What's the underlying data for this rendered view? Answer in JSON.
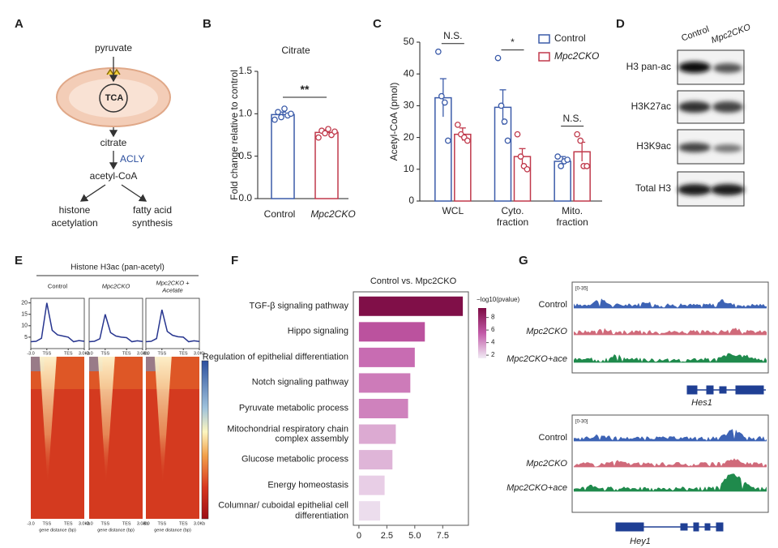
{
  "panel_letters": [
    "A",
    "B",
    "C",
    "D",
    "E",
    "F",
    "G"
  ],
  "pathway": {
    "pyruvate": "pyruvate",
    "tca": "TCA",
    "citrate": "citrate",
    "enzyme": "ACLY",
    "acetyl_coa": "acetyl-CoA",
    "histone": [
      "histone",
      "acetylation"
    ],
    "fatty_acid": [
      "fatty acid",
      "synthesis"
    ]
  },
  "chart_data": [
    {
      "type": "bar",
      "title": "Citrate",
      "ylabel": "Fold change relative to control",
      "categories": [
        "Control",
        "Mpc2CKO"
      ],
      "values": [
        0.99,
        0.78
      ],
      "errors": [
        0.03,
        0.03
      ],
      "colors": [
        "#3b5ba9",
        "#c0394b"
      ],
      "points": [
        [
          0.93,
          1.02,
          0.96,
          1.06,
          0.98,
          1.0
        ],
        [
          0.72,
          0.8,
          0.77,
          0.82,
          0.75,
          0.79
        ]
      ],
      "ylim": [
        0,
        1.5
      ],
      "yticks": [
        {
          "value": 0,
          "label": "0.0"
        },
        {
          "value": 0.5,
          "label": "0.5"
        },
        {
          "value": 1,
          "label": "1.0"
        },
        {
          "value": 1.5,
          "label": "1.5"
        }
      ],
      "annotation": "**"
    },
    {
      "type": "bar",
      "ylabel": "Acetyl-CoA (pmol)",
      "categories": [
        "WCL",
        "Cyto. fraction",
        "Mito. fraction"
      ],
      "series": [
        {
          "name": "Control",
          "color": "#3b5ba9",
          "values": [
            32.5,
            29.5,
            12.5
          ],
          "errors": [
            6,
            5.5,
            1.5
          ],
          "points": [
            [
              47,
              33,
              31,
              19
            ],
            [
              45,
              30,
              25,
              19
            ],
            [
              14,
              11,
              12.5,
              13
            ]
          ]
        },
        {
          "name": "Mpc2CKO",
          "color": "#c0394b",
          "values": [
            21,
            14,
            15.5
          ],
          "errors": [
            2,
            2.5,
            3
          ],
          "points": [
            [
              24,
              21,
              20,
              19
            ],
            [
              21,
              14,
              11,
              10
            ],
            [
              21,
              19,
              11,
              11
            ]
          ]
        }
      ],
      "ylim": [
        0,
        50
      ],
      "yticks": [
        0,
        10,
        20,
        30,
        40,
        50
      ],
      "annotations": [
        "N.S.",
        "*",
        "N.S."
      ],
      "legend": "upper right"
    },
    {
      "type": "barh",
      "title": "Control vs. Mpc2CKO",
      "categories": [
        "TGF-β signaling pathway",
        "Hippo signaling",
        "Regulation of epithelial differentiation",
        "Notch signaling pathway",
        "Pyruvate metabolic process",
        "Mitochondrial respiratory chain complex assembly",
        "Glucose metabolic process",
        "Energy homeostasis",
        "Columnar/ cuboidal epithelial cell differentiation"
      ],
      "values": [
        9.3,
        5.9,
        5.0,
        4.6,
        4.4,
        3.3,
        3.0,
        2.3,
        1.9
      ],
      "xlim": [
        -0.5,
        9.8
      ],
      "xticks": [
        0,
        2.5,
        {
          "value": 5,
          "label": "5.0"
        },
        7.5
      ],
      "colorbar": {
        "title": "−log10(pvalue)",
        "ticks": [
          2,
          4,
          6,
          8
        ],
        "clim": [
          1.5,
          9.5
        ],
        "colors": [
          "#f1ebf5",
          "#c25aa8",
          "#7d0b43"
        ]
      }
    },
    {
      "type": "line",
      "title": "Histone H3ac (pan-acetyl)",
      "xlabel": "gene distance (bp)",
      "x": [
        0,
        1,
        2,
        3,
        4,
        5,
        6,
        7,
        8,
        9,
        10
      ],
      "xlim": [
        0,
        10
      ],
      "xticks": [
        {
          "value": 0,
          "label": "-3.0"
        },
        {
          "value": 3,
          "label": "TSS"
        },
        {
          "value": 7,
          "label": "TES"
        },
        {
          "value": 10,
          "label": "3.0Kb"
        }
      ],
      "ylim": [
        0,
        22
      ],
      "yticks": [
        5,
        10,
        15,
        20
      ],
      "series": [
        {
          "name": "Control",
          "color": "#27358f",
          "values": [
            3,
            3.2,
            4.5,
            20,
            8,
            6,
            5.5,
            5,
            3,
            3.5,
            3.2
          ]
        },
        {
          "name": "Mpc2CKO",
          "color": "#27358f",
          "values": [
            3,
            3.2,
            4.3,
            15,
            7,
            5.5,
            5,
            4.8,
            3,
            3.4,
            3.1
          ]
        },
        {
          "name": "Mpc2CKO + Acetate",
          "color": "#27358f",
          "values": [
            3,
            3.2,
            4.4,
            17,
            7.5,
            5.8,
            5.2,
            5,
            3,
            3.4,
            3.1
          ]
        }
      ]
    }
  ],
  "blot": {
    "columns": [
      "Control",
      "Mpc2CKO"
    ],
    "rows": [
      "H3 pan-ac",
      "H3K27ac",
      "H3K9ac",
      "Total H3"
    ]
  },
  "tracks": [
    {
      "range": "[0-35]",
      "labels": [
        "Control",
        "Mpc2CKO",
        "Mpc2CKO+ace"
      ],
      "gene": "Hes1"
    },
    {
      "range": "[0-30]",
      "labels": [
        "Control",
        "Mpc2CKO",
        "Mpc2CKO+ace"
      ],
      "gene": "Hey1"
    }
  ]
}
